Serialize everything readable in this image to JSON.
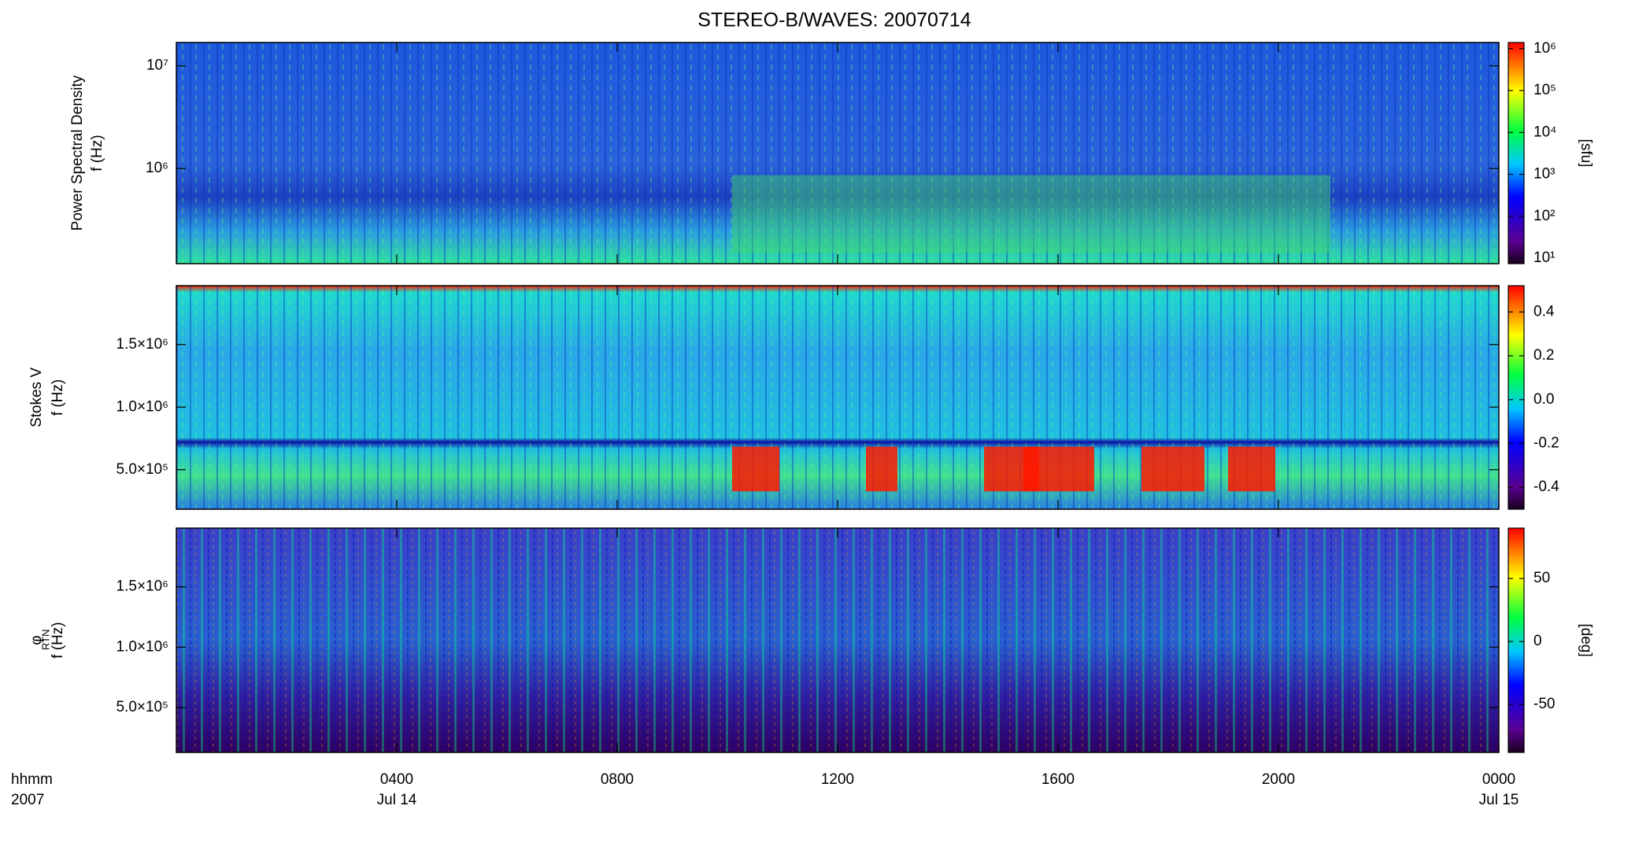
{
  "title": "STEREO-B/WAVES: 20070714",
  "xaxis": {
    "xlim": [
      0,
      24
    ],
    "xticks": [
      {
        "value": 4,
        "label": "0400"
      },
      {
        "value": 8,
        "label": "0800"
      },
      {
        "value": 12,
        "label": "1200"
      },
      {
        "value": 16,
        "label": "1600"
      },
      {
        "value": 20,
        "label": "2000"
      },
      {
        "value": 24,
        "label": "0000"
      }
    ],
    "dates": [
      {
        "value": 4,
        "label": "Jul 14"
      },
      {
        "value": 24,
        "label": "Jul 15"
      }
    ],
    "caption": [
      "hhmm",
      "2007"
    ]
  },
  "chart_data": [
    {
      "type": "heatmap",
      "ylabel": [
        "Power Spectral Density",
        "f (Hz)"
      ],
      "ylog": true,
      "ylim": [
        118000,
        16900000
      ],
      "yticks": [
        {
          "value": 1000000,
          "label": "10⁶"
        },
        {
          "value": 10000000,
          "label": "10⁷"
        }
      ],
      "colorbar": {
        "log": true,
        "clim": [
          7.4,
          1400000
        ],
        "label": "[sfu]",
        "ticks": [
          {
            "value": 10,
            "label": "10¹"
          },
          {
            "value": 100,
            "label": "10²"
          },
          {
            "value": 1000,
            "label": "10³"
          },
          {
            "value": 10000,
            "label": "10⁴"
          },
          {
            "value": 100000,
            "label": "10⁵"
          },
          {
            "value": 1000000,
            "label": "10⁶"
          }
        ]
      }
    },
    {
      "type": "heatmap",
      "ylabel": [
        "Stokes V",
        "f (Hz)"
      ],
      "ylog": false,
      "ylim": [
        184000,
        1970000
      ],
      "yticks": [
        {
          "value": 500000,
          "label": "5.0×10⁵"
        },
        {
          "value": 1000000,
          "label": "1.0×10⁶"
        },
        {
          "value": 1500000,
          "label": "1.5×10⁶"
        }
      ],
      "colorbar": {
        "log": false,
        "clim": [
          -0.5,
          0.52
        ],
        "ticks": [
          -0.4,
          -0.2,
          {
            "value": 0,
            "label": "0.0"
          },
          0.2,
          0.4
        ]
      }
    },
    {
      "type": "heatmap",
      "ylabel": [
        "φ",
        "f (Hz)"
      ],
      "ylabel_sub": "RTN",
      "ylog": false,
      "ylim": [
        128000,
        1987000
      ],
      "yticks": [
        {
          "value": 500000,
          "label": "5.0×10⁵"
        },
        {
          "value": 1000000,
          "label": "1.0×10⁶"
        },
        {
          "value": 1500000,
          "label": "1.5×10⁶"
        }
      ],
      "colorbar": {
        "log": false,
        "clim": [
          -88,
          90
        ],
        "label": "[deg]",
        "ticks": [
          -50,
          0,
          50
        ]
      }
    }
  ]
}
